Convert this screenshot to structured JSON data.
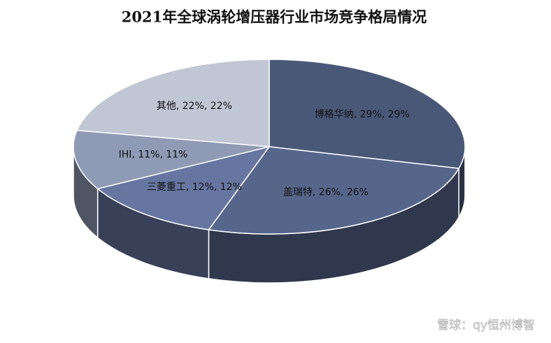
{
  "chart_data": {
    "type": "pie3d",
    "title": "2021年全球涡轮增压器行业市场竞争格局情况",
    "categories": [
      "博格华纳",
      "盖瑞特",
      "三菱重工",
      "IHI",
      "其他"
    ],
    "values": [
      29,
      26,
      12,
      11,
      22
    ],
    "value_labels": [
      "博格华纳, 29%, 29%",
      "盖瑞特, 26%, 26%",
      "三菱重工, 12%, 12%",
      "IHI, 11%, 11%",
      "其他, 22%, 22%"
    ],
    "colors": [
      "#4a5878",
      "#56668b",
      "#6676a0",
      "#8f9ab4",
      "#c0c6d3"
    ],
    "watermark": "雪球：qy恒州博智"
  }
}
